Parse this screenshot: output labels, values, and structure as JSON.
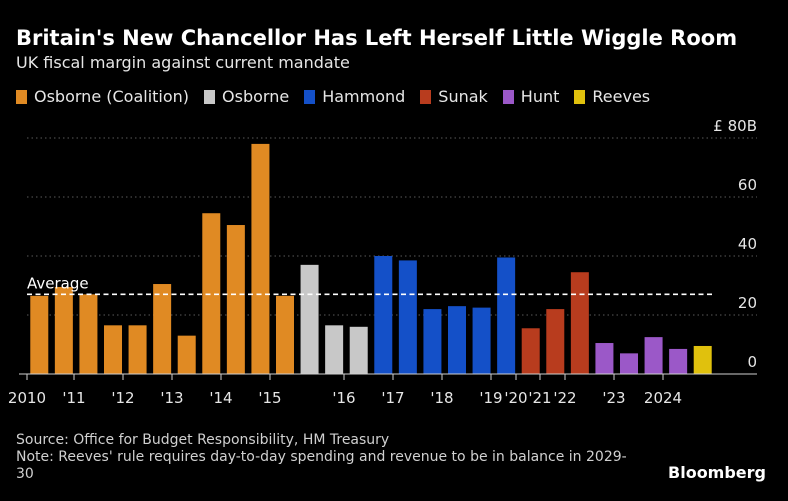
{
  "title": "Britain's New Chancellor Has Left Herself Little Wiggle Room",
  "subtitle": "UK fiscal margin against current mandate",
  "legend": [
    {
      "label": "Osborne (Coalition)",
      "color": "#e08a23"
    },
    {
      "label": "Osborne",
      "color": "#c8c8c8"
    },
    {
      "label": "Hammond",
      "color": "#1450c8"
    },
    {
      "label": "Sunak",
      "color": "#b83c1e"
    },
    {
      "label": "Hunt",
      "color": "#9b58c8"
    },
    {
      "label": "Reeves",
      "color": "#e0c10d"
    }
  ],
  "chart_data": {
    "type": "bar",
    "title": "Britain's New Chancellor Has Left Herself Little Wiggle Room",
    "subtitle": "UK fiscal margin against current mandate",
    "ylabel": "£ B",
    "ylim": [
      0,
      80
    ],
    "yticks": [
      {
        "value": 80,
        "label": "£ 80B"
      },
      {
        "value": 60,
        "label": "60"
      },
      {
        "value": 40,
        "label": "40"
      },
      {
        "value": 20,
        "label": "20"
      },
      {
        "value": 0,
        "label": "0"
      }
    ],
    "grid": true,
    "average": {
      "label": "Average",
      "value": 27
    },
    "xticks": [
      "2010",
      "'11",
      "'12",
      "'13",
      "'14",
      "'15",
      "'16",
      "'17",
      "'18",
      "'19",
      "'20",
      "'21",
      "'22",
      "'23",
      "2024"
    ],
    "bars": [
      {
        "group": "Osborne (Coalition)",
        "value": 26.5
      },
      {
        "group": "Osborne (Coalition)",
        "value": 29.5
      },
      {
        "group": "Osborne (Coalition)",
        "value": 27
      },
      {
        "group": "Osborne (Coalition)",
        "value": 16.5
      },
      {
        "group": "Osborne (Coalition)",
        "value": 16.5
      },
      {
        "group": "Osborne (Coalition)",
        "value": 30.5
      },
      {
        "group": "Osborne (Coalition)",
        "value": 13
      },
      {
        "group": "Osborne (Coalition)",
        "value": 54.5
      },
      {
        "group": "Osborne (Coalition)",
        "value": 50.5
      },
      {
        "group": "Osborne (Coalition)",
        "value": 78
      },
      {
        "group": "Osborne (Coalition)",
        "value": 26.5
      },
      {
        "group": "Osborne",
        "value": 37
      },
      {
        "group": "Osborne",
        "value": 16.5
      },
      {
        "group": "Osborne",
        "value": 16
      },
      {
        "group": "Hammond",
        "value": 40
      },
      {
        "group": "Hammond",
        "value": 38.5
      },
      {
        "group": "Hammond",
        "value": 22
      },
      {
        "group": "Hammond",
        "value": 23
      },
      {
        "group": "Hammond",
        "value": 22.5
      },
      {
        "group": "Hammond",
        "value": 39.5
      },
      {
        "group": "Sunak",
        "value": 15.5
      },
      {
        "group": "Sunak",
        "value": 22
      },
      {
        "group": "Sunak",
        "value": 34.5
      },
      {
        "group": "Hunt",
        "value": 10.5
      },
      {
        "group": "Hunt",
        "value": 7
      },
      {
        "group": "Hunt",
        "value": 12.5
      },
      {
        "group": "Hunt",
        "value": 8.5
      },
      {
        "group": "Reeves",
        "value": 9.5
      }
    ]
  },
  "footnote": {
    "source": "Source: Office for Budget Responsibility, HM Treasury",
    "note": "Note: Reeves' rule requires day-to-day spending and revenue to be in balance in 2029-30"
  },
  "brand": "Bloomberg"
}
